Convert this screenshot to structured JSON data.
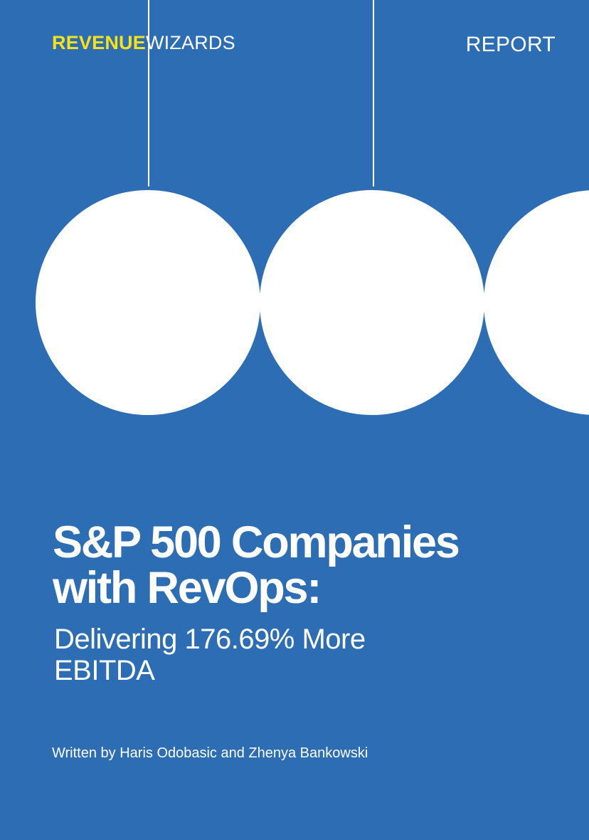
{
  "brand": {
    "name_strong": "REVENUE",
    "name_light": "WIZARDS"
  },
  "document_type": "REPORT",
  "title": {
    "line1": "S&P 500 Companies",
    "line2": "with RevOps:"
  },
  "subtitle": {
    "line1": "Delivering 176.69% More",
    "line2": "EBITDA"
  },
  "byline": "Written by Haris Odobasic and Zhenya Bankowski",
  "colors": {
    "background": "#2d6db3",
    "accent": "#f6e21b",
    "foreground": "#ffffff"
  }
}
